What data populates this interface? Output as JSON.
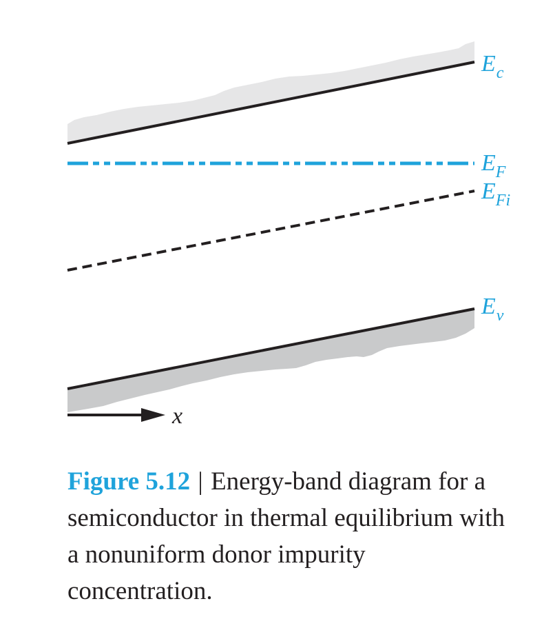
{
  "colors": {
    "ink": "#231f20",
    "accent": "#1fa3db",
    "conduction_fill": "#e6e6e7",
    "valence_fill": "#c9cacb"
  },
  "diagram": {
    "conduction_band": {
      "letter": "E",
      "subscript": "c"
    },
    "fermi_level": {
      "letter": "E",
      "subscript": "F"
    },
    "intrinsic_fermi_level": {
      "letter": "E",
      "subscript": "Fi"
    },
    "valence_band": {
      "letter": "E",
      "subscript": "v"
    },
    "position_axis": {
      "label": "x"
    }
  },
  "caption": {
    "figure_number": "Figure 5.12",
    "separator": "|",
    "text": "Energy-band diagram for a semiconductor in thermal equilibrium with a nonuniform donor impurity concentration."
  }
}
